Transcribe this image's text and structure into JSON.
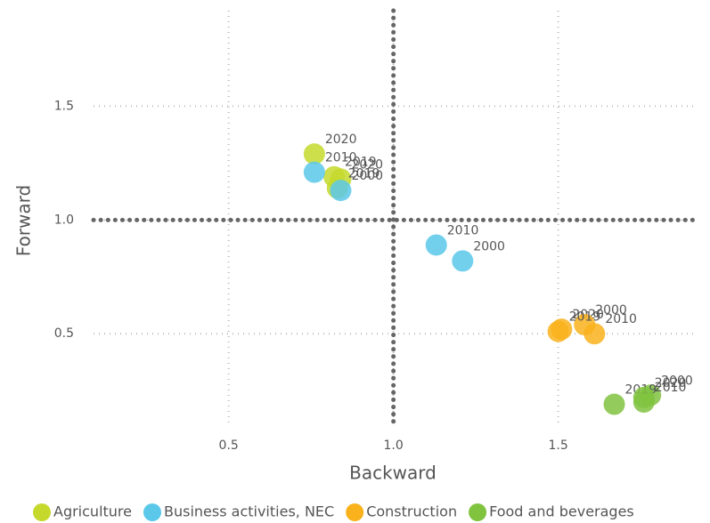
{
  "chart_data": {
    "type": "scatter",
    "x_label": "Backward",
    "y_label": "Forward",
    "xlim": [
      0.09,
      1.92
    ],
    "ylim": [
      0.11,
      1.92
    ],
    "xticks": [
      0.5,
      {
        "value": 1,
        "label": "1.0"
      },
      1.5
    ],
    "yticks": [
      0.5,
      {
        "value": 1,
        "label": "1.0"
      },
      1.5
    ],
    "grid": true,
    "vline": 1,
    "hline": 1,
    "legend": "bottom",
    "series": [
      {
        "name": "Agriculture",
        "color": "#c5d92d",
        "x": [
          0.76,
          0.82,
          0.84,
          0.83
        ],
        "values": [
          1.29,
          1.19,
          1.18,
          1.14
        ],
        "labels": [
          "2020",
          "2019",
          "2020",
          "2019"
        ]
      },
      {
        "name": "Business activities, NEC",
        "color": "#5bc8ea",
        "x": [
          0.76,
          0.84,
          1.13,
          1.21
        ],
        "values": [
          1.21,
          1.13,
          0.89,
          0.82
        ],
        "labels": [
          "2010",
          "2000",
          "2010",
          "2000"
        ]
      },
      {
        "name": "Construction",
        "color": "#f9b21c",
        "x": [
          1.51,
          1.58,
          1.61,
          1.5
        ],
        "values": [
          0.52,
          0.54,
          0.5,
          0.51
        ],
        "labels": [
          "2020",
          "2000",
          "2010",
          "2019"
        ]
      },
      {
        "name": "Food and beverages",
        "color": "#80c33f",
        "x": [
          1.78,
          1.76,
          1.67,
          1.76
        ],
        "values": [
          0.23,
          0.2,
          0.19,
          0.22
        ],
        "labels": [
          "2000",
          "2010",
          "2019",
          "2020"
        ]
      }
    ]
  }
}
